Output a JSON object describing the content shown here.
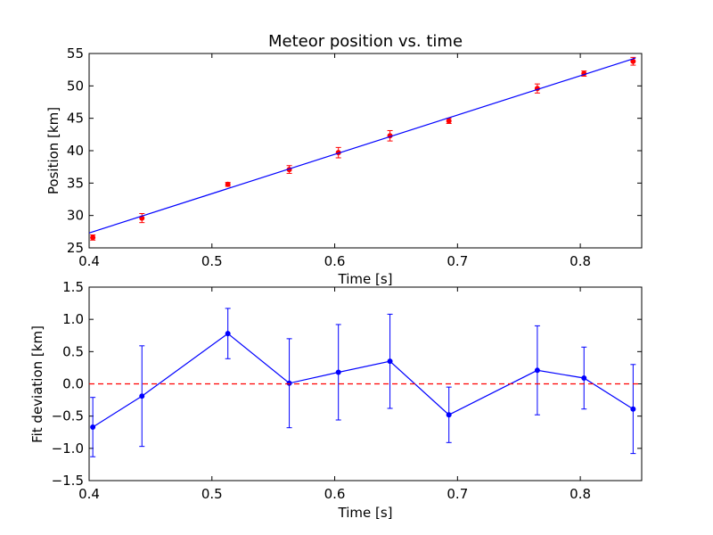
{
  "chart_data": [
    {
      "type": "scatter",
      "title": "Meteor position vs. time",
      "xlabel": "Time [s]",
      "ylabel": "Position [km]",
      "xlim": [
        0.4,
        0.85
      ],
      "ylim": [
        25,
        55
      ],
      "xticks": [
        "0.4",
        "0.5",
        "0.6",
        "0.7",
        "0.8"
      ],
      "yticks": [
        "25",
        "30",
        "35",
        "40",
        "45",
        "50",
        "55"
      ],
      "grid": false,
      "series": [
        {
          "kind": "points-with-errorbars",
          "color": "#ff0000",
          "errorbar_color": "#ff0000",
          "x": [
            0.403,
            0.443,
            0.513,
            0.563,
            0.603,
            0.645,
            0.693,
            0.765,
            0.803,
            0.843
          ],
          "y": [
            26.6,
            29.6,
            34.8,
            37.1,
            39.7,
            42.3,
            44.6,
            49.6,
            51.9,
            53.8
          ],
          "yerr": [
            0.4,
            0.7,
            0.3,
            0.6,
            0.8,
            0.8,
            0.4,
            0.7,
            0.4,
            0.6
          ]
        },
        {
          "kind": "fit-line",
          "color": "#0000ff",
          "x": [
            0.4,
            0.845
          ],
          "y": [
            27.3,
            54.3
          ]
        }
      ]
    },
    {
      "type": "line",
      "title": "",
      "xlabel": "Time [s]",
      "ylabel": "Fit deviation [km]",
      "xlim": [
        0.4,
        0.85
      ],
      "ylim": [
        -1.5,
        1.5
      ],
      "xticks": [
        "0.4",
        "0.5",
        "0.6",
        "0.7",
        "0.8"
      ],
      "yticks": [
        "1.5",
        "1.0",
        "0.5",
        "0.0",
        "−0.5",
        "−1.0",
        "−1.5"
      ],
      "ytick_values": [
        1.5,
        1.0,
        0.5,
        0.0,
        -0.5,
        -1.0,
        -1.5
      ],
      "grid": false,
      "series": [
        {
          "kind": "line-with-errorbars",
          "color": "#0000ff",
          "x": [
            0.403,
            0.443,
            0.513,
            0.563,
            0.603,
            0.645,
            0.693,
            0.765,
            0.803,
            0.843
          ],
          "y": [
            -0.67,
            -0.19,
            0.78,
            0.01,
            0.18,
            0.35,
            -0.48,
            0.21,
            0.09,
            -0.39
          ],
          "yerr": [
            0.46,
            0.78,
            0.39,
            0.69,
            0.74,
            0.73,
            0.43,
            0.69,
            0.48,
            0.69
          ]
        },
        {
          "kind": "reference-line",
          "color": "#ff0000",
          "linestyle": "dashed",
          "y": 0.0
        }
      ]
    }
  ]
}
